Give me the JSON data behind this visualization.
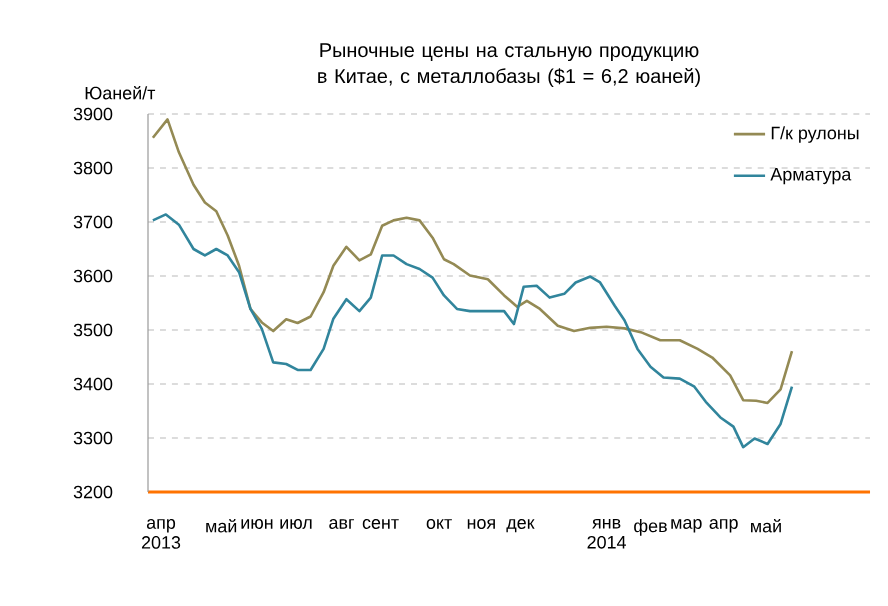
{
  "chart_data": {
    "type": "line",
    "title": "Рыночные цены на стальную продукцию в Китае, с металлобазы ($1 = 6,2 юаней)",
    "ylabel": "Юаней/т",
    "xlim": [
      "2013-04-02",
      "2014-06-20"
    ],
    "xticks": [
      {
        "value": "2013-04-10",
        "label": "апр 2013"
      },
      {
        "value": "2013-05-17",
        "label": "май"
      },
      {
        "value": "2013-06-08",
        "label": "июн"
      },
      {
        "value": "2013-07-02",
        "label": "июл"
      },
      {
        "value": "2013-07-30",
        "label": "авг"
      },
      {
        "value": "2013-08-23",
        "label": "сент"
      },
      {
        "value": "2013-09-28",
        "label": "окт"
      },
      {
        "value": "2013-10-24",
        "label": "ноя"
      },
      {
        "value": "2013-11-17",
        "label": "дек"
      },
      {
        "value": "2014-01-09",
        "label": "янв 2014"
      },
      {
        "value": "2014-02-05",
        "label": "фев"
      },
      {
        "value": "2014-02-27",
        "label": "мар"
      },
      {
        "value": "2014-03-22",
        "label": "апр"
      },
      {
        "value": "2014-04-17",
        "label": "май"
      }
    ],
    "ylim": [
      3200,
      3900
    ],
    "yticks": [
      3200,
      3300,
      3400,
      3500,
      3600,
      3700,
      3800,
      3900
    ],
    "grid": "y",
    "legend": "top right",
    "marker": "none",
    "series": [
      {
        "name": "Г/к рулоны",
        "color": "#948a54",
        "x": [
          "2013-04-05",
          "2013-04-14",
          "2013-04-21",
          "2013-04-30",
          "2013-05-07",
          "2013-05-14",
          "2013-05-21",
          "2013-05-28",
          "2013-06-04",
          "2013-06-11",
          "2013-06-18",
          "2013-06-26",
          "2013-07-03",
          "2013-07-11",
          "2013-07-19",
          "2013-07-25",
          "2013-08-02",
          "2013-08-10",
          "2013-08-17",
          "2013-08-24",
          "2013-08-31",
          "2013-09-08",
          "2013-09-16",
          "2013-09-24",
          "2013-10-01",
          "2013-10-07",
          "2013-10-17",
          "2013-10-28",
          "2013-11-07",
          "2013-11-15",
          "2013-11-21",
          "2013-11-29",
          "2013-12-10",
          "2013-12-20",
          "2013-12-30",
          "2014-01-09",
          "2014-01-20",
          "2014-01-30",
          "2014-02-11",
          "2014-02-23",
          "2014-03-06",
          "2014-03-15",
          "2014-03-26",
          "2014-04-03",
          "2014-04-11",
          "2014-04-18",
          "2014-04-26",
          "2014-05-03"
        ],
        "values": [
          3856,
          3890,
          3829,
          3769,
          3736,
          3720,
          3675,
          3619,
          3539,
          3514,
          3498,
          3520,
          3513,
          3525,
          3570,
          3619,
          3654,
          3629,
          3640,
          3693,
          3703,
          3708,
          3703,
          3671,
          3631,
          3622,
          3601,
          3594,
          3564,
          3543,
          3554,
          3539,
          3508,
          3498,
          3504,
          3506,
          3503,
          3496,
          3481,
          3481,
          3465,
          3449,
          3416,
          3370,
          3369,
          3365,
          3390,
          3461
        ]
      },
      {
        "name": "Арматура",
        "color": "#31859c",
        "x": [
          "2013-04-05",
          "2013-04-13",
          "2013-04-21",
          "2013-04-30",
          "2013-05-07",
          "2013-05-14",
          "2013-05-21",
          "2013-05-28",
          "2013-06-04",
          "2013-06-11",
          "2013-06-18",
          "2013-06-26",
          "2013-07-03",
          "2013-07-11",
          "2013-07-19",
          "2013-07-25",
          "2013-08-02",
          "2013-08-10",
          "2013-08-17",
          "2013-08-24",
          "2013-08-31",
          "2013-09-08",
          "2013-09-16",
          "2013-09-24",
          "2013-10-01",
          "2013-10-09",
          "2013-10-17",
          "2013-10-28",
          "2013-11-07",
          "2013-11-13",
          "2013-11-19",
          "2013-11-27",
          "2013-12-05",
          "2013-12-14",
          "2013-12-21",
          "2013-12-30",
          "2014-01-05",
          "2014-01-14",
          "2014-01-20",
          "2014-01-28",
          "2014-02-05",
          "2014-02-13",
          "2014-02-23",
          "2014-03-04",
          "2014-03-11",
          "2014-03-20",
          "2014-03-28",
          "2014-04-03",
          "2014-04-10",
          "2014-04-18",
          "2014-04-26",
          "2014-05-03"
        ],
        "values": [
          3703,
          3714,
          3695,
          3650,
          3638,
          3650,
          3638,
          3607,
          3539,
          3502,
          3440,
          3437,
          3426,
          3426,
          3465,
          3521,
          3557,
          3535,
          3560,
          3638,
          3638,
          3622,
          3613,
          3597,
          3564,
          3539,
          3535,
          3535,
          3535,
          3511,
          3580,
          3582,
          3560,
          3567,
          3588,
          3599,
          3588,
          3545,
          3518,
          3465,
          3432,
          3412,
          3410,
          3395,
          3367,
          3338,
          3321,
          3283,
          3299,
          3289,
          3326,
          3395
        ]
      }
    ]
  }
}
